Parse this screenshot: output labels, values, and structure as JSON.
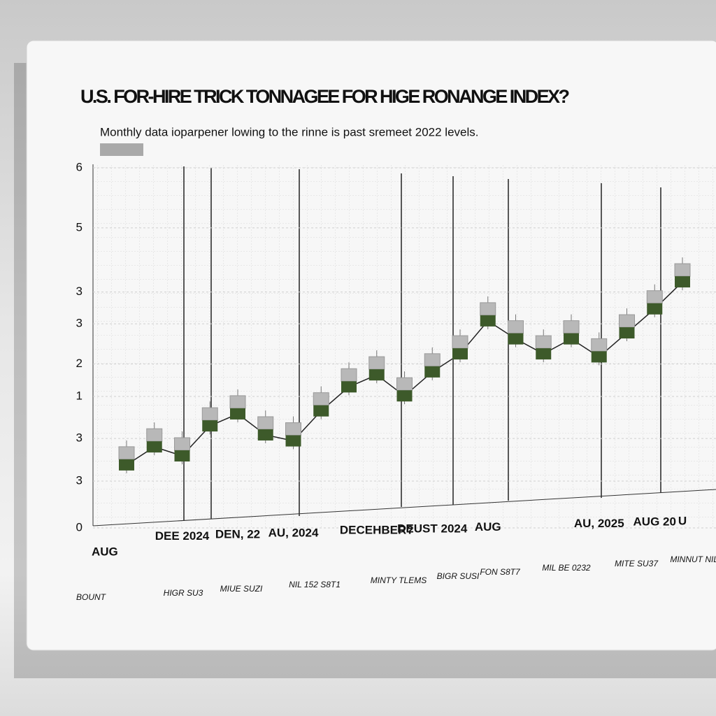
{
  "chart_data": {
    "type": "line",
    "title": "U.S. FOR-HIRE TRICK TONNAGEE FOR HIGE RONANGE INDEX?",
    "subtitle": "Monthly data ioparpener lowing to the rinne is past sremeet 2022 levels.",
    "categories": [
      "AUG",
      null,
      "DEE 2024",
      null,
      "DEN, 22",
      null,
      "AU, 2024",
      null,
      null,
      "DECEHBER?",
      null,
      "DEUST 2024",
      null,
      "AUG",
      null,
      null,
      null,
      "AU, 2025",
      null,
      "AUG 20",
      "U"
    ],
    "series": [
      {
        "name": null,
        "color": "#3d5a2a",
        "values": [
          1.05,
          1.35,
          1.2,
          1.7,
          1.9,
          1.55,
          1.45,
          1.95,
          2.35,
          2.55,
          2.2,
          2.6,
          2.9,
          3.45,
          3.15,
          2.9,
          3.15,
          2.85,
          3.25,
          3.65,
          4.1
        ]
      }
    ],
    "ylim": [
      0,
      6
    ],
    "yticks": [
      0,
      {
        "value": 0.78,
        "label": "3"
      },
      {
        "value": 1.49,
        "label": "3"
      },
      {
        "value": 2.19,
        "label": "1"
      },
      {
        "value": 2.73,
        "label": "2"
      },
      {
        "value": 3.4,
        "label": "3"
      },
      {
        "value": 3.93,
        "label": "3"
      },
      5,
      6
    ],
    "grid": true,
    "footer_labels": [
      "BOUNT",
      "HIGR SU3",
      "MIUE SUZI",
      "NIL 152 S8T1",
      "MINTY TLEMS",
      "BIGR SUSI",
      "FON S8T7",
      "MIL BE 0232",
      "MITE SU37",
      "MINNUT NILLE"
    ]
  }
}
